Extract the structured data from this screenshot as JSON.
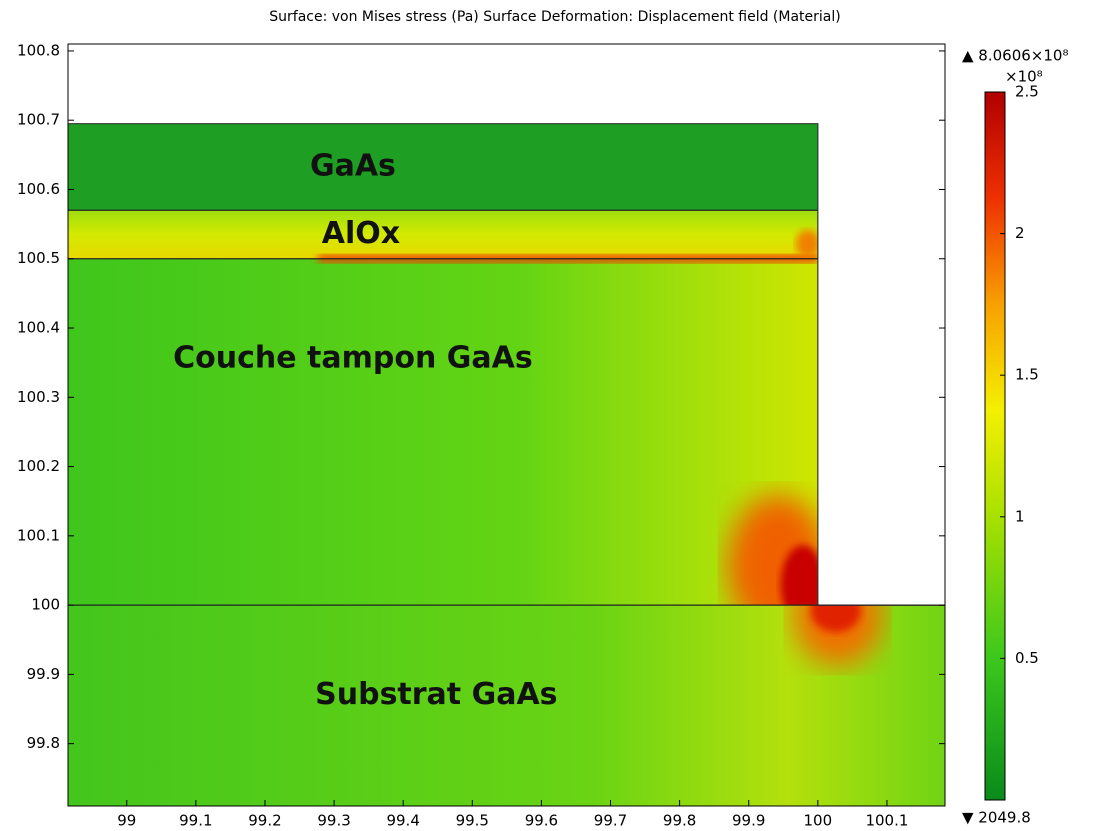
{
  "chart_data": {
    "type": "surface",
    "title": "Surface: von Mises stress (Pa)    Surface Deformation: Displacement field (Material)",
    "xlim": [
      98.915,
      100.184
    ],
    "ylim": [
      99.71,
      100.81
    ],
    "xticks": [
      99,
      99.1,
      99.2,
      99.3,
      99.4,
      99.5,
      99.6,
      99.7,
      99.8,
      99.9,
      100,
      100.1
    ],
    "yticks": [
      99.8,
      99.9,
      100,
      100.1,
      100.2,
      100.3,
      100.4,
      100.5,
      100.6,
      100.7,
      100.8
    ],
    "step_x": 100,
    "layers": [
      {
        "label": "GaAs",
        "y": [
          100.57,
          100.695
        ]
      },
      {
        "label": "AlOx",
        "y": [
          100.5,
          100.57
        ]
      },
      {
        "label": "Couche tampon GaAs",
        "y": [
          100,
          100.5
        ]
      },
      {
        "label": "Substrat GaAs",
        "y": [
          99.71,
          100
        ]
      }
    ],
    "colorbar": {
      "max_label": "▲ 8.0606×10⁸",
      "unit": "×10⁸",
      "min_label": "▼ 2049.8",
      "clim": [
        0,
        2.5
      ],
      "ticks": [
        0.5,
        1,
        1.5,
        2,
        2.5
      ]
    }
  }
}
